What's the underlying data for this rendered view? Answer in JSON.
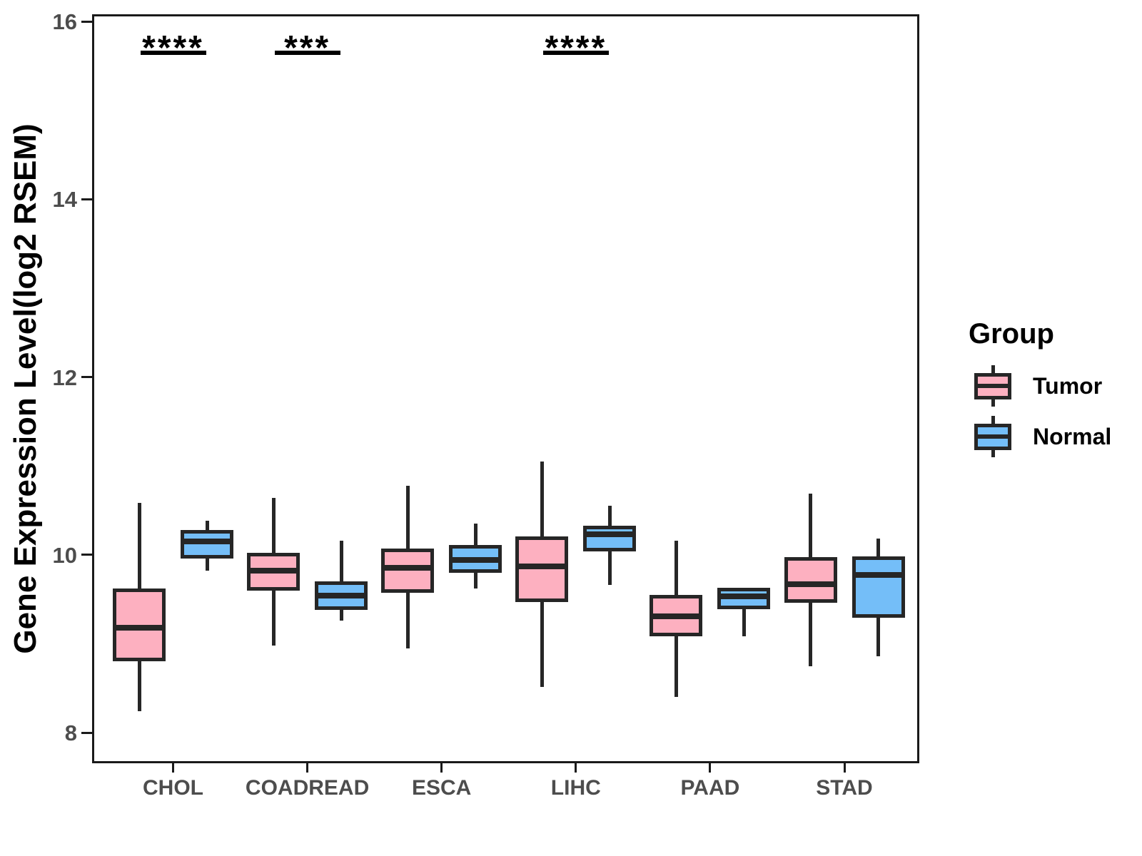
{
  "chart_data": {
    "type": "boxplot",
    "title": "",
    "xlabel": "",
    "ylabel": "Gene Expression Level(log2 RSEM)",
    "categories": [
      "CHOL",
      "COADREAD",
      "ESCA",
      "LIHC",
      "PAAD",
      "STAD"
    ],
    "y_axis": {
      "ticks": [
        16,
        14,
        12,
        10,
        8
      ],
      "range_shown": [
        7.6,
        16.1
      ]
    },
    "grid": false,
    "legend": {
      "title": "Group",
      "position": "right",
      "entries": [
        "Tumor",
        "Normal"
      ]
    },
    "series": [
      {
        "name": "Tumor",
        "color": "#FDB0C0",
        "boxes": [
          {
            "category": "CHOL",
            "whisker_low": 8.24,
            "q1": 8.8,
            "median": 9.18,
            "q3": 9.62,
            "whisker_high": 10.58
          },
          {
            "category": "COADREAD",
            "whisker_low": 8.98,
            "q1": 9.6,
            "median": 9.82,
            "q3": 10.02,
            "whisker_high": 10.64
          },
          {
            "category": "ESCA",
            "whisker_low": 8.95,
            "q1": 9.57,
            "median": 9.85,
            "q3": 10.07,
            "whisker_high": 10.78
          },
          {
            "category": "LIHC",
            "whisker_low": 8.51,
            "q1": 9.47,
            "median": 9.87,
            "q3": 10.21,
            "whisker_high": 11.05
          },
          {
            "category": "PAAD",
            "whisker_low": 8.4,
            "q1": 9.08,
            "median": 9.31,
            "q3": 9.55,
            "whisker_high": 10.16
          },
          {
            "category": "STAD",
            "whisker_low": 8.75,
            "q1": 9.46,
            "median": 9.67,
            "q3": 9.97,
            "whisker_high": 10.69
          }
        ]
      },
      {
        "name": "Normal",
        "color": "#74BEF8",
        "boxes": [
          {
            "category": "CHOL",
            "whisker_low": 9.82,
            "q1": 9.96,
            "median": 10.15,
            "q3": 10.28,
            "whisker_high": 10.38
          },
          {
            "category": "COADREAD",
            "whisker_low": 9.26,
            "q1": 9.38,
            "median": 9.54,
            "q3": 9.7,
            "whisker_high": 10.16
          },
          {
            "category": "ESCA",
            "whisker_low": 9.62,
            "q1": 9.8,
            "median": 9.94,
            "q3": 10.11,
            "whisker_high": 10.35
          },
          {
            "category": "LIHC",
            "whisker_low": 9.66,
            "q1": 10.04,
            "median": 10.23,
            "q3": 10.33,
            "whisker_high": 10.55
          },
          {
            "category": "PAAD",
            "whisker_low": 9.08,
            "q1": 9.39,
            "median": 9.53,
            "q3": 9.63,
            "whisker_high": 9.63
          },
          {
            "category": "STAD",
            "whisker_low": 8.86,
            "q1": 9.29,
            "median": 9.77,
            "q3": 9.98,
            "whisker_high": 10.18
          }
        ]
      }
    ],
    "significance": [
      {
        "category": "CHOL",
        "label": "****"
      },
      {
        "category": "COADREAD",
        "label": "***"
      },
      {
        "category": "LIHC",
        "label": "****"
      }
    ]
  },
  "colors": {
    "tumor_fill": "#FDB0C0",
    "normal_fill": "#74BEF8",
    "box_line": "#262626",
    "axis_line": "#1a1a1a",
    "axis_text": "#4d4d4d",
    "title_text": "#000000"
  }
}
